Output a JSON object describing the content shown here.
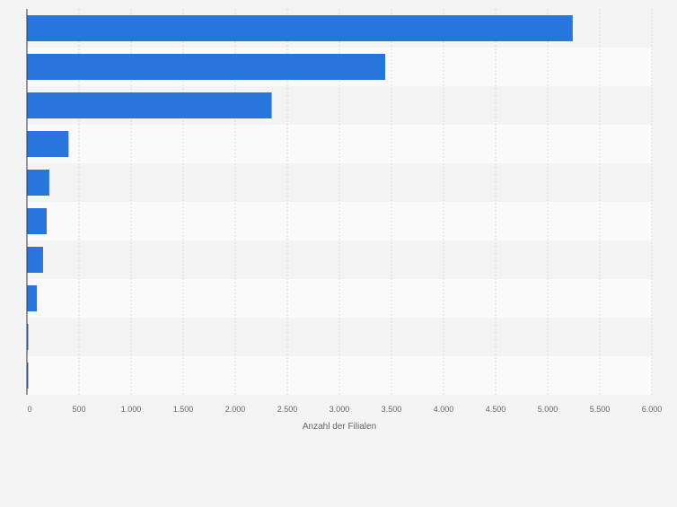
{
  "chart_data": {
    "type": "bar",
    "orientation": "horizontal",
    "categories": [
      "",
      "",
      "",
      "",
      "",
      "",
      "",
      "",
      "",
      ""
    ],
    "values": [
      5240,
      3440,
      2350,
      400,
      215,
      190,
      155,
      95,
      10,
      8
    ],
    "xlabel": "Anzahl der Filialen",
    "xlim": [
      0,
      6000
    ],
    "xticks": [
      0,
      500,
      1000,
      1500,
      2000,
      2500,
      3000,
      3500,
      4000,
      4500,
      5000,
      5500,
      6000
    ],
    "xtick_labels": [
      "0",
      "500",
      "1.000",
      "1.500",
      "2.000",
      "2.500",
      "3.000",
      "3.500",
      "4.000",
      "4.500",
      "5.000",
      "5.500",
      "6.000"
    ],
    "grid": true,
    "bar_color": "#2876dd",
    "band_colors": [
      "#f4f4f4",
      "#fafafa"
    ],
    "grid_color": "#dcdcdc",
    "text_color": "#666666",
    "axis_color": "#3a3a3a"
  }
}
